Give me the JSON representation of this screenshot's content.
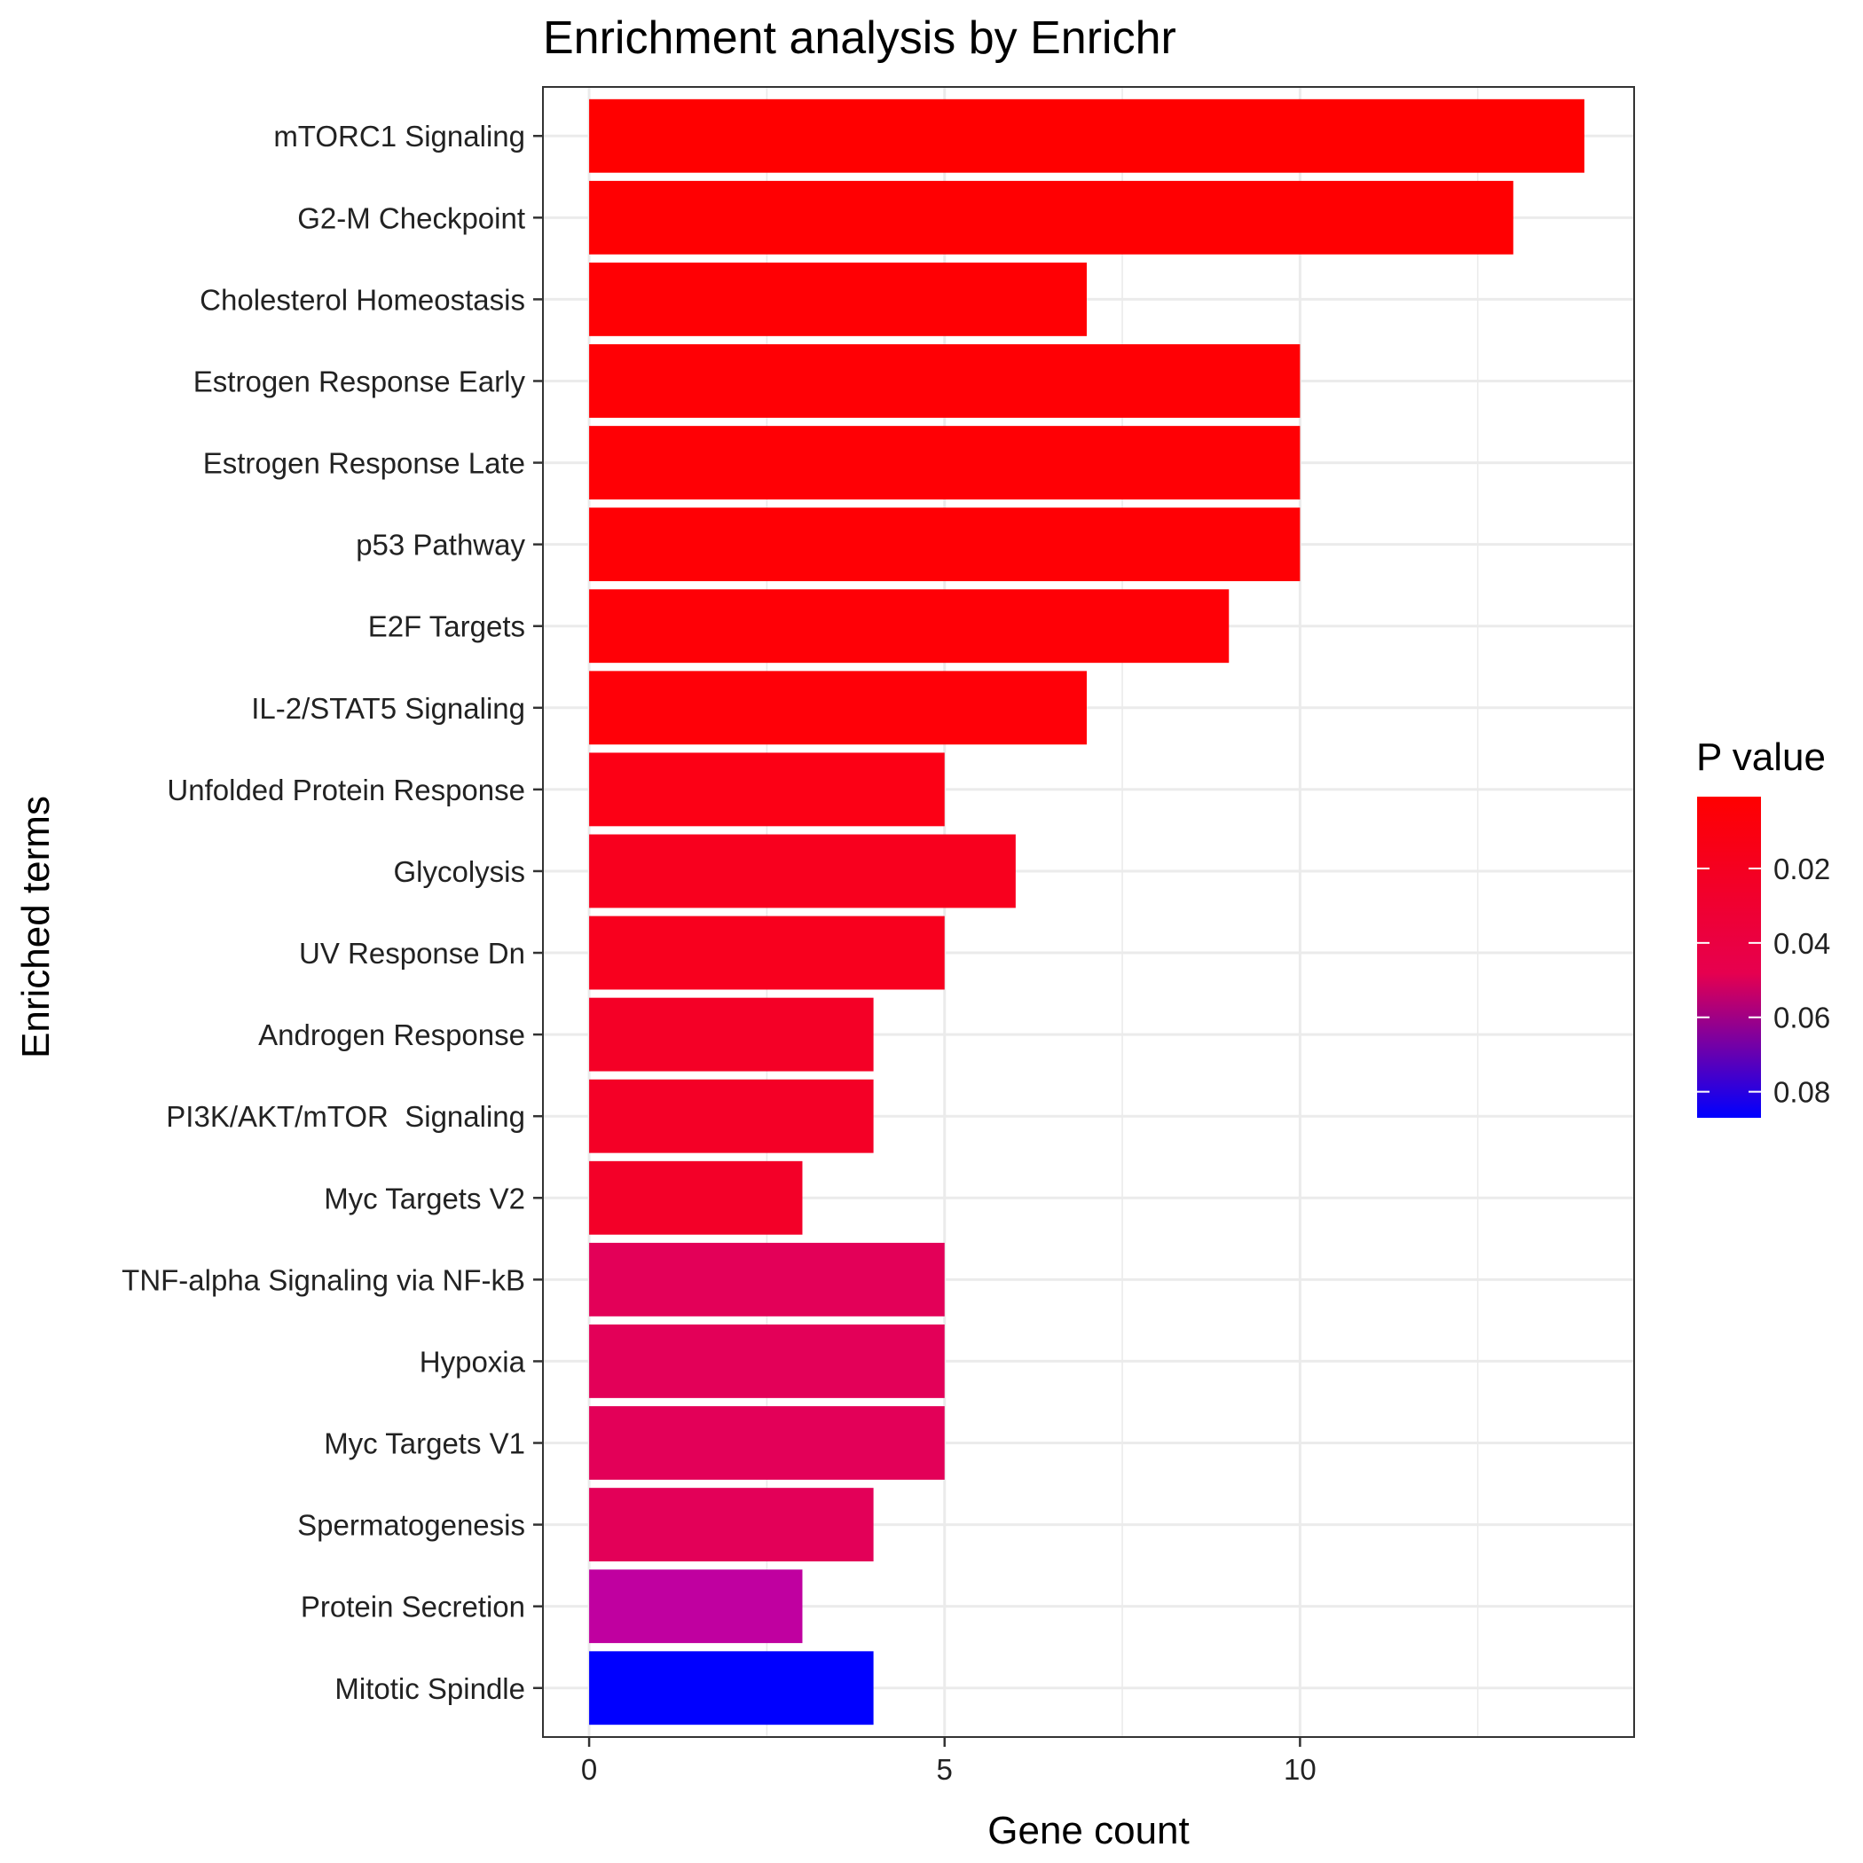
{
  "chart_data": {
    "type": "bar",
    "orientation": "horizontal",
    "title": "Enrichment analysis by Enrichr",
    "xlabel": "Gene count",
    "ylabel": "Enriched terms",
    "xlim": [
      -0.65,
      14.7
    ],
    "xticks": [
      "0",
      "5",
      "10"
    ],
    "grid": true,
    "legend": {
      "title": "P value",
      "placement": "right",
      "labels": [
        "0.02",
        "0.04",
        "0.06",
        "0.08"
      ],
      "label_values": [
        0.02,
        0.04,
        0.06,
        0.08
      ],
      "range": [
        0.0007,
        0.087
      ],
      "low_color": "#ff0000",
      "high_color": "#0000ff"
    },
    "categories": [
      "mTORC1 Signaling",
      "G2-M Checkpoint",
      "Cholesterol Homeostasis",
      "Estrogen Response Early",
      "Estrogen Response Late",
      "p53 Pathway",
      "E2F Targets",
      "IL-2/STAT5 Signaling",
      "Unfolded Protein Response",
      "Glycolysis",
      "UV Response Dn",
      "Androgen Response",
      "PI3K/AKT/mTOR  Signaling",
      "Myc Targets V2",
      "TNF-alpha Signaling via NF-kB",
      "Hypoxia",
      "Myc Targets V1",
      "Spermatogenesis",
      "Protein Secretion",
      "Mitotic Spindle"
    ],
    "values": [
      14,
      13,
      7,
      10,
      10,
      10,
      9,
      7,
      5,
      6,
      5,
      4,
      4,
      3,
      5,
      5,
      5,
      4,
      3,
      4
    ],
    "p_values": [
      0.0007,
      0.001,
      0.002,
      0.0025,
      0.0025,
      0.0025,
      0.003,
      0.004,
      0.009,
      0.011,
      0.011,
      0.014,
      0.014,
      0.015,
      0.028,
      0.028,
      0.028,
      0.028,
      0.052,
      0.087
    ],
    "colors": [
      "#ff0000",
      "#ff0002",
      "#ff0004",
      "#ff0005",
      "#ff0005",
      "#ff0005",
      "#ff0006",
      "#ff0008",
      "#fc0015",
      "#f8001e",
      "#f8001e",
      "#f40026",
      "#f40026",
      "#f30028",
      "#e30058",
      "#e30058",
      "#e30058",
      "#e30058",
      "#c000a0",
      "#0000ff"
    ]
  }
}
